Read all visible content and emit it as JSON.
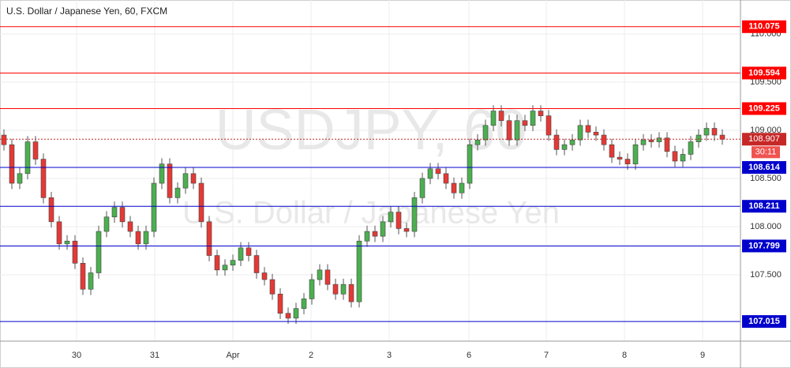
{
  "chart_data": {
    "type": "candlestick",
    "title": "U.S. Dollar / Japanese Yen, 60, FXCM",
    "watermark": "USDJPY, 60",
    "watermark_subtitle": "U.S. Dollar / Japanese Yen",
    "up_color": "#4caf50",
    "down_color": "#e53935",
    "open": [
      108.95,
      108.85,
      108.45,
      108.55,
      108.88,
      108.7,
      108.3,
      108.05,
      107.82,
      107.85,
      107.62,
      107.35,
      107.52,
      107.95,
      108.1,
      108.2,
      108.05,
      107.95,
      107.82,
      107.95,
      108.45,
      108.65,
      108.3,
      108.4,
      108.55,
      108.45,
      108.05,
      107.7,
      107.55,
      107.6,
      107.65,
      107.78,
      107.7,
      107.52,
      107.45,
      107.3,
      107.1,
      107.05,
      107.15,
      107.25,
      107.45,
      107.55,
      107.4,
      107.3,
      107.4,
      107.22,
      107.85,
      107.95,
      107.9,
      108.05,
      108.15,
      107.98,
      107.95,
      108.3,
      108.5,
      108.6,
      108.55,
      108.45,
      108.35,
      108.45,
      108.85,
      108.9,
      109.05,
      109.2,
      109.1,
      108.9,
      109.1,
      109.05,
      109.2,
      109.15,
      108.95,
      108.8,
      108.85,
      108.9,
      109.05,
      108.98,
      108.95,
      108.85,
      108.72,
      108.7,
      108.65,
      108.85,
      108.9,
      108.88,
      108.92,
      108.78,
      108.68,
      108.75,
      108.88,
      108.95,
      109.02,
      108.95
    ],
    "high": [
      109.01,
      108.91,
      108.61,
      108.94,
      108.94,
      108.76,
      108.36,
      108.11,
      107.91,
      107.91,
      107.68,
      107.58,
      108.01,
      108.16,
      108.26,
      108.26,
      108.11,
      108.01,
      108.01,
      108.51,
      108.71,
      108.71,
      108.46,
      108.61,
      108.61,
      108.51,
      108.11,
      107.76,
      107.66,
      107.71,
      107.84,
      107.84,
      107.76,
      107.58,
      107.51,
      107.36,
      107.16,
      107.21,
      107.31,
      107.51,
      107.61,
      107.61,
      107.46,
      107.46,
      107.46,
      107.91,
      108.01,
      108.01,
      108.11,
      108.21,
      108.21,
      108.04,
      108.36,
      108.56,
      108.66,
      108.66,
      108.61,
      108.51,
      108.51,
      108.91,
      108.96,
      109.11,
      109.26,
      109.26,
      109.16,
      109.16,
      109.16,
      109.26,
      109.26,
      109.21,
      109.01,
      108.91,
      108.96,
      109.11,
      109.11,
      109.04,
      109.01,
      108.91,
      108.78,
      108.76,
      108.91,
      108.96,
      108.96,
      108.98,
      108.98,
      108.84,
      108.81,
      108.94,
      109.01,
      109.08,
      109.08,
      109.01
    ],
    "low": [
      108.79,
      108.39,
      108.39,
      108.49,
      108.64,
      108.24,
      107.99,
      107.76,
      107.76,
      107.56,
      107.29,
      107.29,
      107.46,
      107.89,
      108.04,
      107.99,
      107.89,
      107.76,
      107.76,
      107.89,
      108.39,
      108.24,
      108.24,
      108.34,
      108.39,
      107.99,
      107.64,
      107.49,
      107.49,
      107.54,
      107.59,
      107.64,
      107.46,
      107.39,
      107.24,
      107.04,
      106.99,
      106.99,
      107.09,
      107.19,
      107.39,
      107.34,
      107.24,
      107.24,
      107.16,
      107.16,
      107.79,
      107.84,
      107.84,
      107.99,
      107.92,
      107.89,
      107.89,
      108.24,
      108.44,
      108.49,
      108.39,
      108.29,
      108.29,
      108.39,
      108.79,
      108.84,
      108.99,
      109.04,
      108.84,
      108.84,
      108.99,
      108.99,
      109.09,
      108.89,
      108.74,
      108.74,
      108.79,
      108.84,
      108.92,
      108.89,
      108.79,
      108.66,
      108.64,
      108.59,
      108.59,
      108.79,
      108.82,
      108.82,
      108.72,
      108.62,
      108.62,
      108.69,
      108.82,
      108.89,
      108.89,
      108.85
    ],
    "close": [
      108.85,
      108.45,
      108.55,
      108.88,
      108.7,
      108.3,
      108.05,
      107.82,
      107.85,
      107.62,
      107.35,
      107.52,
      107.95,
      108.1,
      108.2,
      108.05,
      107.95,
      107.82,
      107.95,
      108.45,
      108.65,
      108.3,
      108.4,
      108.55,
      108.45,
      108.05,
      107.7,
      107.55,
      107.6,
      107.65,
      107.78,
      107.7,
      107.52,
      107.45,
      107.3,
      107.1,
      107.05,
      107.15,
      107.25,
      107.45,
      107.55,
      107.4,
      107.3,
      107.4,
      107.22,
      107.85,
      107.95,
      107.9,
      108.05,
      108.15,
      107.98,
      107.95,
      108.3,
      108.5,
      108.6,
      108.55,
      108.45,
      108.35,
      108.45,
      108.85,
      108.9,
      109.05,
      109.2,
      109.1,
      108.9,
      109.1,
      109.05,
      109.2,
      109.15,
      108.95,
      108.8,
      108.85,
      108.9,
      109.05,
      108.98,
      108.95,
      108.85,
      108.72,
      108.7,
      108.65,
      108.85,
      108.9,
      108.88,
      108.92,
      108.78,
      108.68,
      108.75,
      108.88,
      108.95,
      109.02,
      108.95,
      108.907
    ],
    "levels": [
      {
        "value": 110.075,
        "color": "#ff0000"
      },
      {
        "value": 109.594,
        "color": "#ff0000"
      },
      {
        "value": 109.225,
        "color": "#ff0000"
      },
      {
        "value": 108.614,
        "color": "#0000cc"
      },
      {
        "value": 108.211,
        "color": "#0000cc"
      },
      {
        "value": 107.799,
        "color": "#0000cc"
      },
      {
        "value": 107.015,
        "color": "#0000cc"
      }
    ],
    "current": {
      "value": 108.907,
      "color": "#c62828",
      "countdown": "30:11"
    },
    "xlim": [
      -0.5,
      93.3
    ],
    "xticks": [
      {
        "value": 9.2,
        "label": "30"
      },
      {
        "value": 19.1,
        "label": "31"
      },
      {
        "value": 29,
        "label": "Apr"
      },
      {
        "value": 38.9,
        "label": "2"
      },
      {
        "value": 48.8,
        "label": "3"
      },
      {
        "value": 58.9,
        "label": "6"
      },
      {
        "value": 68.7,
        "label": "7"
      },
      {
        "value": 78.6,
        "label": "8"
      },
      {
        "value": 88.5,
        "label": "9"
      }
    ],
    "ylim": [
      106.811,
      110.352
    ],
    "yticks": [
      {
        "value": 107.5,
        "label": "107.500"
      },
      {
        "value": 108,
        "label": "108.000"
      },
      {
        "value": 108.5,
        "label": "108.500"
      },
      {
        "value": 109,
        "label": "109.000"
      },
      {
        "value": 109.5,
        "label": "109.500"
      },
      {
        "value": 110,
        "label": "110.000"
      }
    ],
    "grid": true
  }
}
